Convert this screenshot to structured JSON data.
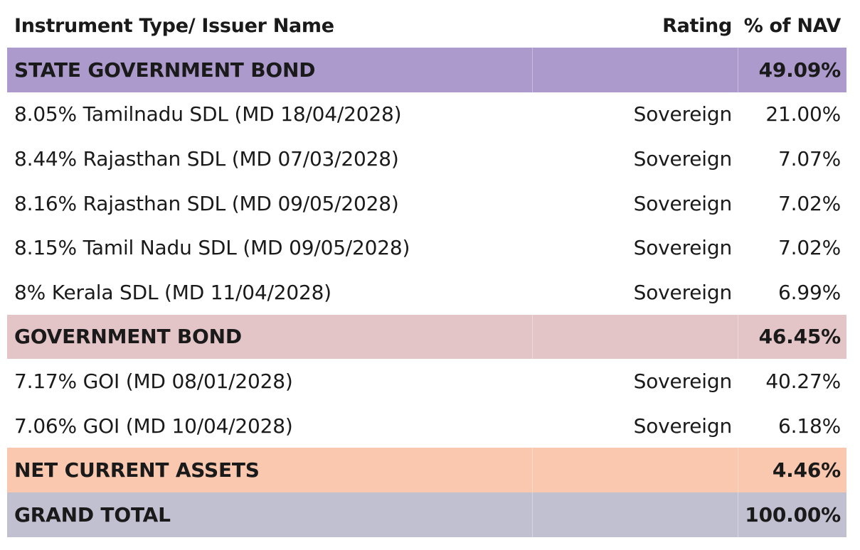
{
  "header": {
    "instrument": "Instrument Type/ Issuer Name",
    "rating": "Rating",
    "nav": "% of NAV"
  },
  "sections": [
    {
      "name": "STATE GOVERNMENT BOND",
      "nav": "49.09%",
      "color": "#ab9acb",
      "items": [
        {
          "name": "8.05% Tamilnadu SDL (MD 18/04/2028)",
          "rating": "Sovereign",
          "nav": "21.00%"
        },
        {
          "name": "8.44% Rajasthan SDL (MD 07/03/2028)",
          "rating": "Sovereign",
          "nav": "7.07%"
        },
        {
          "name": "8.16% Rajasthan SDL (MD 09/05/2028)",
          "rating": "Sovereign",
          "nav": "7.02%"
        },
        {
          "name": "8.15% Tamil Nadu SDL (MD 09/05/2028)",
          "rating": "Sovereign",
          "nav": "7.02%"
        },
        {
          "name": "8% Kerala SDL (MD 11/04/2028)",
          "rating": "Sovereign",
          "nav": "6.99%"
        }
      ]
    },
    {
      "name": "GOVERNMENT BOND",
      "nav": "46.45%",
      "color": "#e3c5c8",
      "items": [
        {
          "name": "7.17% GOI (MD 08/01/2028)",
          "rating": "Sovereign",
          "nav": "40.27%"
        },
        {
          "name": "7.06% GOI (MD 10/04/2028)",
          "rating": "Sovereign",
          "nav": "6.18%"
        }
      ]
    },
    {
      "name": "NET CURRENT ASSETS",
      "nav": "4.46%",
      "color": "#f9c8ae",
      "items": []
    },
    {
      "name": "GRAND TOTAL",
      "nav": "100.00%",
      "color": "#c1c0d0",
      "items": []
    }
  ]
}
